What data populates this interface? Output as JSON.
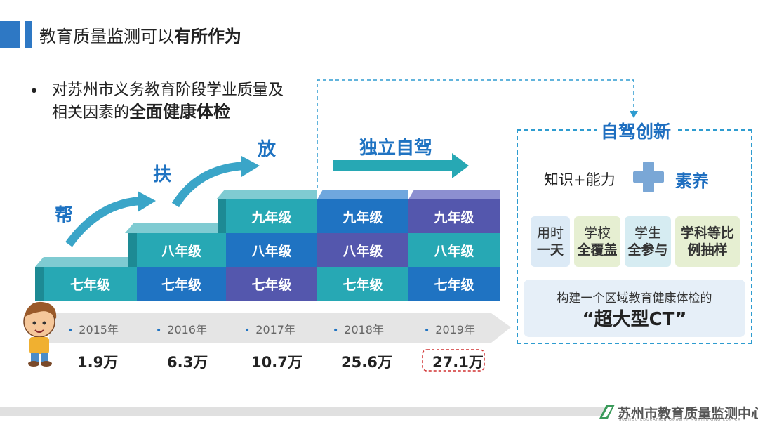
{
  "header": {
    "title_normal": "教育质量监测可以",
    "title_bold": "有所作为"
  },
  "bullet": {
    "line1": "对苏州市义务教育阶段学业质量及",
    "line2_normal": "相关因素的",
    "line2_bold": "全面健康体检"
  },
  "steps": {
    "bang": "帮",
    "fu": "扶",
    "fang": "放",
    "independent": "独立自驾"
  },
  "grades": {
    "g7": "七年级",
    "g8": "八年级",
    "g9": "九年级"
  },
  "years": [
    "2015年",
    "2016年",
    "2017年",
    "2018年",
    "2019年"
  ],
  "counts": [
    "1.9万",
    "6.3万",
    "10.7万",
    "25.6万",
    "27.1万"
  ],
  "panel": {
    "title": "自驾创新",
    "knowledge": "知识+能力",
    "literacy": "素养",
    "tags": [
      {
        "l1": "用时",
        "l2": "一天"
      },
      {
        "l1": "学校",
        "l2": "全覆盖"
      },
      {
        "l1": "学生",
        "l2": "全参与"
      },
      {
        "l1": "学科等比",
        "l2": "例抽样"
      }
    ],
    "ct_line1": "构建一个区域教育健康体检的",
    "ct_line2": "“超大型CT”"
  },
  "footer": {
    "logo": "苏州市教育质量监测中心",
    "sub": "SUZHOU EDUCATION QUALITY MONITORING CENTER"
  },
  "colors": {
    "teal": "#27a8b4",
    "blue": "#1f73c2",
    "purple": "#5457ad",
    "accent": "#1f6fc0"
  }
}
